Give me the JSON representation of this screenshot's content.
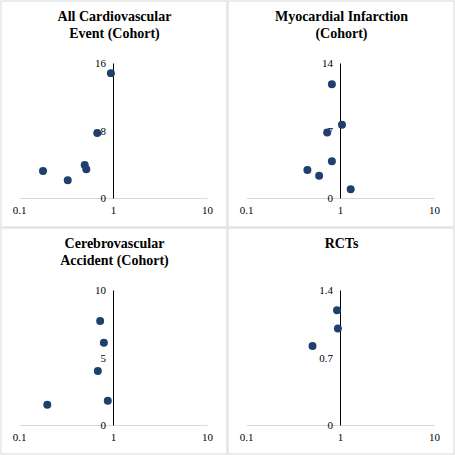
{
  "chart_data": [
    {
      "type": "scatter",
      "title": "All Cardiovascular Event (Cohort)",
      "log": "x",
      "color": "#1f3f6e",
      "marker": "circle",
      "x": [
        0.18,
        0.33,
        0.5,
        0.52,
        0.68,
        0.95
      ],
      "values": [
        3.2,
        2.1,
        3.9,
        3.4,
        7.7,
        14.8
      ],
      "xlim": [
        0.1,
        10
      ],
      "xticks": [
        0.1,
        1,
        10
      ],
      "ylim": [
        0,
        16
      ],
      "yticks": [
        0,
        8,
        16
      ]
    },
    {
      "type": "scatter",
      "title": "Myocardial Infarction (Cohort)",
      "log": "x",
      "color": "#1f3f6e",
      "marker": "circle",
      "x": [
        0.82,
        1.05,
        0.73,
        0.82,
        0.45,
        0.6,
        1.3
      ],
      "values": [
        11.8,
        7.6,
        6.8,
        3.8,
        2.9,
        2.3,
        0.9
      ],
      "xlim": [
        0.1,
        10
      ],
      "xticks": [
        0.1,
        1,
        10
      ],
      "ylim": [
        0,
        14
      ],
      "yticks": [
        0,
        7,
        14
      ]
    },
    {
      "type": "scatter",
      "title": "Cerebrovascular Accident (Cohort)",
      "log": "x",
      "color": "#1f3f6e",
      "marker": "circle",
      "x": [
        0.2,
        0.69,
        0.73,
        0.8,
        0.88
      ],
      "values": [
        1.5,
        4.0,
        7.7,
        6.1,
        1.8
      ],
      "xlim": [
        0.1,
        10
      ],
      "xticks": [
        0.1,
        1,
        10
      ],
      "ylim": [
        0,
        10
      ],
      "yticks": [
        0,
        5,
        10
      ]
    },
    {
      "type": "scatter",
      "title": "RCTs",
      "log": "x",
      "color": "#1f3f6e",
      "marker": "circle",
      "x": [
        0.51,
        0.93,
        0.95
      ],
      "values": [
        0.82,
        1.19,
        1.0
      ],
      "xlim": [
        0.1,
        10
      ],
      "xticks": [
        0.1,
        1,
        10
      ],
      "ylim": [
        0,
        1.4
      ],
      "yticks": [
        0,
        0.7,
        1.4
      ]
    }
  ]
}
